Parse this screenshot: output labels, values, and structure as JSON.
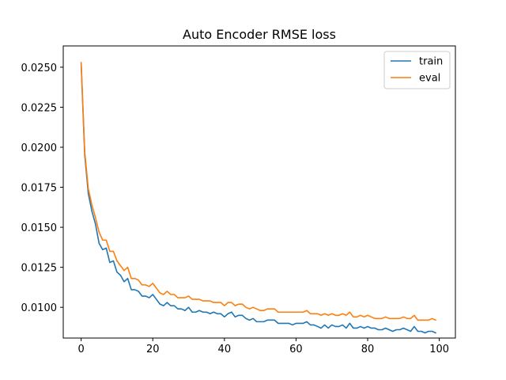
{
  "chart_data": {
    "type": "line",
    "title": "Auto Encoder RMSE loss",
    "xlabel": "",
    "ylabel": "",
    "xlim": [
      -5,
      104.5
    ],
    "ylim": [
      0.00808,
      0.02633
    ],
    "x_ticks": [
      0,
      20,
      40,
      60,
      80,
      100
    ],
    "x_tick_labels": [
      "0",
      "20",
      "40",
      "60",
      "80",
      "100"
    ],
    "y_ticks": [
      0.01,
      0.0125,
      0.015,
      0.0175,
      0.02,
      0.0225,
      0.025
    ],
    "y_tick_labels": [
      "0.0100",
      "0.0125",
      "0.0150",
      "0.0175",
      "0.0200",
      "0.0225",
      "0.0250"
    ],
    "grid": false,
    "legend_position": "upper right",
    "x": [
      0,
      1,
      2,
      3,
      4,
      5,
      6,
      7,
      8,
      9,
      10,
      11,
      12,
      13,
      14,
      15,
      16,
      17,
      18,
      19,
      20,
      21,
      22,
      23,
      24,
      25,
      26,
      27,
      28,
      29,
      30,
      31,
      32,
      33,
      34,
      35,
      36,
      37,
      38,
      39,
      40,
      41,
      42,
      43,
      44,
      45,
      46,
      47,
      48,
      49,
      50,
      51,
      52,
      53,
      54,
      55,
      56,
      57,
      58,
      59,
      60,
      61,
      62,
      63,
      64,
      65,
      66,
      67,
      68,
      69,
      70,
      71,
      72,
      73,
      74,
      75,
      76,
      77,
      78,
      79,
      80,
      81,
      82,
      83,
      84,
      85,
      86,
      87,
      88,
      89,
      90,
      91,
      92,
      93,
      94,
      95,
      96,
      97,
      98,
      99
    ],
    "series": [
      {
        "name": "train",
        "color": "#1f77b4",
        "values": [
          0.0252,
          0.0195,
          0.0171,
          0.016,
          0.0152,
          0.014,
          0.0136,
          0.0137,
          0.0128,
          0.0129,
          0.0122,
          0.012,
          0.0116,
          0.0118,
          0.0111,
          0.0111,
          0.011,
          0.0107,
          0.0107,
          0.0106,
          0.0108,
          0.0105,
          0.0102,
          0.0101,
          0.0103,
          0.0101,
          0.0101,
          0.0099,
          0.0099,
          0.0098,
          0.01,
          0.0097,
          0.0097,
          0.0098,
          0.0097,
          0.0097,
          0.0096,
          0.0097,
          0.0096,
          0.0096,
          0.0094,
          0.0096,
          0.0097,
          0.0094,
          0.0095,
          0.0095,
          0.0093,
          0.0092,
          0.0093,
          0.0091,
          0.0091,
          0.0091,
          0.0092,
          0.0092,
          0.0092,
          0.009,
          0.009,
          0.009,
          0.009,
          0.0089,
          0.009,
          0.009,
          0.009,
          0.0091,
          0.0089,
          0.0089,
          0.0088,
          0.0087,
          0.0089,
          0.0087,
          0.0089,
          0.0088,
          0.0088,
          0.0089,
          0.0087,
          0.009,
          0.0087,
          0.0087,
          0.0088,
          0.0087,
          0.0088,
          0.0087,
          0.0087,
          0.0086,
          0.0086,
          0.0087,
          0.0086,
          0.0085,
          0.0086,
          0.0086,
          0.0087,
          0.0086,
          0.0085,
          0.0088,
          0.0085,
          0.0085,
          0.0084,
          0.0085,
          0.0085,
          0.0084
        ]
      },
      {
        "name": "eval",
        "color": "#ff7f0e",
        "values": [
          0.0253,
          0.0197,
          0.0174,
          0.0164,
          0.0156,
          0.0147,
          0.0142,
          0.0142,
          0.0135,
          0.0135,
          0.0129,
          0.0126,
          0.0123,
          0.0125,
          0.0118,
          0.0118,
          0.0117,
          0.0114,
          0.0114,
          0.0113,
          0.0115,
          0.0112,
          0.0109,
          0.0108,
          0.011,
          0.0108,
          0.0108,
          0.0106,
          0.0106,
          0.0106,
          0.0107,
          0.0105,
          0.0105,
          0.0105,
          0.0104,
          0.0104,
          0.0104,
          0.0103,
          0.0103,
          0.0103,
          0.0101,
          0.0103,
          0.0103,
          0.0101,
          0.0102,
          0.0102,
          0.01,
          0.0099,
          0.01,
          0.0099,
          0.0098,
          0.0098,
          0.0099,
          0.0099,
          0.0099,
          0.0097,
          0.0097,
          0.0097,
          0.0097,
          0.0097,
          0.0097,
          0.0097,
          0.0097,
          0.0098,
          0.0096,
          0.0096,
          0.0096,
          0.0095,
          0.0096,
          0.0095,
          0.0096,
          0.0095,
          0.0095,
          0.0096,
          0.0095,
          0.0097,
          0.0094,
          0.0094,
          0.0095,
          0.0094,
          0.0095,
          0.0094,
          0.0093,
          0.0093,
          0.0093,
          0.0094,
          0.0093,
          0.0093,
          0.0093,
          0.0093,
          0.0094,
          0.0093,
          0.0093,
          0.0095,
          0.0092,
          0.0092,
          0.0092,
          0.0092,
          0.0093,
          0.0092
        ]
      }
    ]
  }
}
